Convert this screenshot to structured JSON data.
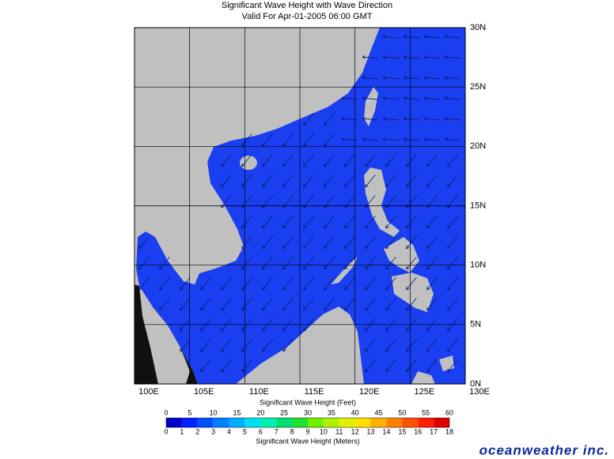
{
  "title": "Significant Wave Height with Wave Direction",
  "subtitle": "Valid For Apr-01-2005 06:00 GMT",
  "longitude_labels": [
    "100E",
    "105E",
    "110E",
    "115E",
    "120E",
    "125E",
    "130E"
  ],
  "latitude_labels": [
    "0N",
    "5N",
    "10N",
    "15N",
    "20N",
    "25N",
    "30N"
  ],
  "colorbar": {
    "feet_title": "Significant Wave Height (Feet)",
    "feet_labels": [
      0,
      5,
      10,
      15,
      20,
      25,
      30,
      35,
      40,
      45,
      50,
      55,
      60
    ],
    "meters_title": "Significant Wave Height (Meters)",
    "meters_labels": [
      0,
      1,
      2,
      3,
      4,
      5,
      6,
      7,
      8,
      9,
      10,
      11,
      12,
      13,
      14,
      15,
      16,
      17,
      18
    ]
  },
  "logo": "oceanweather inc."
}
